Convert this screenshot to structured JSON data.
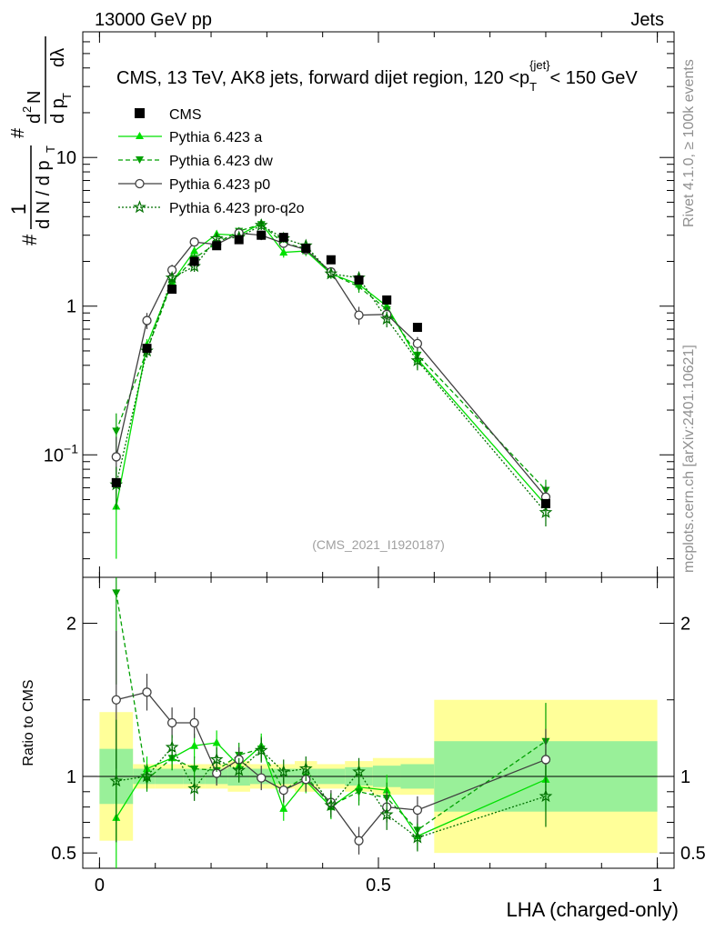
{
  "header": {
    "left": "13000 GeV pp",
    "right": "Jets"
  },
  "side_labels": {
    "rivet": "Rivet 4.1.0, ≥ 100k events",
    "mcplots": "mcplots.cern.ch [arXiv:2401.10621]"
  },
  "chart_data": {
    "type": "line",
    "title": "CMS, 13 TeV, AK8 jets, forward dijet region, 120 <p_T^{jet}< 150 GeV",
    "title_parts": {
      "main": "CMS, 13 TeV, AK8 jets, forward dijet region, 120 <p",
      "sub": "T",
      "sup": "{jet}",
      "tail": "< 150 GeV"
    },
    "watermark": "(CMS_2021_I1920187)",
    "ylabel_upper": "1/N dN/dp_T d²N/dp_T dλ",
    "ylabel_parts": {
      "hash": "#",
      "one": "1",
      "dN": "d N / d p",
      "T": "T",
      "d2N": "d",
      "two": "2",
      "N": "N",
      "dpT": "d p",
      "dl": "dλ"
    },
    "ylabel_lower": "Ratio to CMS",
    "xlabel": "LHA (charged-only)",
    "x_range": [
      -0.03,
      1.03
    ],
    "y_range_upper_log": [
      0.015,
      70
    ],
    "y_range_lower": [
      0.4,
      2.3
    ],
    "x_ticks": [
      {
        "v": 0,
        "label": "0"
      },
      {
        "v": 0.5,
        "label": "0.5"
      },
      {
        "v": 1,
        "label": "1"
      }
    ],
    "y_ticks_upper": [
      {
        "v": 0.1,
        "base": "10",
        "exp": "−1"
      },
      {
        "v": 1,
        "base": "1",
        "exp": ""
      },
      {
        "v": 10,
        "base": "10",
        "exp": ""
      }
    ],
    "y_ticks_lower": [
      {
        "v": 0.5,
        "label": "0.5"
      },
      {
        "v": 1,
        "label": "1"
      },
      {
        "v": 2,
        "label": "2"
      }
    ],
    "bins": [
      {
        "lo": 0.0,
        "hi": 0.06
      },
      {
        "lo": 0.06,
        "hi": 0.1
      },
      {
        "lo": 0.1,
        "hi": 0.15
      },
      {
        "lo": 0.15,
        "hi": 0.19
      },
      {
        "lo": 0.19,
        "hi": 0.23
      },
      {
        "lo": 0.23,
        "hi": 0.27
      },
      {
        "lo": 0.27,
        "hi": 0.31
      },
      {
        "lo": 0.31,
        "hi": 0.35
      },
      {
        "lo": 0.35,
        "hi": 0.39
      },
      {
        "lo": 0.39,
        "hi": 0.44
      },
      {
        "lo": 0.44,
        "hi": 0.49
      },
      {
        "lo": 0.49,
        "hi": 0.54
      },
      {
        "lo": 0.54,
        "hi": 0.6
      },
      {
        "lo": 0.6,
        "hi": 1.0
      }
    ],
    "x": [
      0.03,
      0.085,
      0.13,
      0.17,
      0.21,
      0.25,
      0.29,
      0.33,
      0.37,
      0.415,
      0.465,
      0.515,
      0.57,
      0.8
    ],
    "cms": {
      "name": "CMS",
      "values": [
        0.065,
        0.52,
        1.3,
        2.0,
        2.55,
        2.8,
        3.0,
        2.9,
        2.45,
        2.05,
        1.5,
        1.1,
        0.72,
        0.047
      ],
      "band_inner": [
        0.18,
        0.05,
        0.05,
        0.05,
        0.05,
        0.06,
        0.05,
        0.05,
        0.05,
        0.05,
        0.06,
        0.07,
        0.08,
        0.23
      ],
      "band_outer": [
        0.42,
        0.08,
        0.08,
        0.08,
        0.08,
        0.1,
        0.08,
        0.08,
        0.1,
        0.08,
        0.1,
        0.12,
        0.12,
        0.5
      ]
    },
    "series": [
      {
        "name": "Pythia 6.423 a",
        "color": "#00e000",
        "dash": "",
        "marker": "tri-up",
        "values": [
          0.045,
          0.55,
          1.45,
          2.35,
          3.05,
          3.0,
          3.6,
          2.3,
          2.35,
          1.65,
          1.4,
          1.0,
          0.44,
          0.046
        ],
        "errors": [
          0.025,
          0.05,
          0.1,
          0.15,
          0.18,
          0.2,
          0.25,
          0.18,
          0.18,
          0.12,
          0.12,
          0.1,
          0.06,
          0.008
        ]
      },
      {
        "name": "Pythia 6.423 dw",
        "color": "#00a000",
        "dash": "5,3",
        "marker": "tri-down",
        "values": [
          0.145,
          0.5,
          1.45,
          2.1,
          2.65,
          3.2,
          3.55,
          2.65,
          2.45,
          1.65,
          1.35,
          0.95,
          0.47,
          0.058
        ],
        "errors": [
          0.045,
          0.05,
          0.1,
          0.15,
          0.18,
          0.2,
          0.25,
          0.18,
          0.18,
          0.12,
          0.12,
          0.1,
          0.06,
          0.01
        ]
      },
      {
        "name": "Pythia 6.423 p0",
        "color": "#404040",
        "dash": "",
        "marker": "circle",
        "values": [
          0.097,
          0.8,
          1.75,
          2.7,
          2.6,
          3.1,
          3.0,
          2.65,
          2.4,
          1.7,
          0.87,
          0.88,
          0.56,
          0.052
        ],
        "errors": [
          0.035,
          0.1,
          0.15,
          0.18,
          0.18,
          0.2,
          0.22,
          0.18,
          0.18,
          0.12,
          0.12,
          0.1,
          0.06,
          0.01
        ]
      },
      {
        "name": "Pythia 6.423 pro-q2o",
        "color": "#007000",
        "dash": "2,2",
        "marker": "star",
        "values": [
          0.063,
          0.5,
          1.55,
          1.85,
          2.85,
          2.9,
          3.5,
          2.85,
          2.55,
          1.65,
          1.55,
          0.82,
          0.43,
          0.041
        ],
        "errors": [
          0.02,
          0.05,
          0.1,
          0.15,
          0.18,
          0.2,
          0.25,
          0.18,
          0.18,
          0.12,
          0.12,
          0.1,
          0.06,
          0.008
        ]
      }
    ],
    "ratios": [
      {
        "name": "Pythia 6.423 a",
        "values": [
          0.73,
          1.05,
          1.12,
          1.2,
          1.22,
          1.07,
          1.2,
          0.79,
          0.97,
          0.8,
          0.93,
          0.91,
          0.61,
          0.98
        ],
        "errors": [
          0.45,
          0.08,
          0.08,
          0.08,
          0.08,
          0.08,
          0.08,
          0.08,
          0.08,
          0.08,
          0.09,
          0.1,
          0.09,
          0.2
        ]
      },
      {
        "name": "Pythia 6.423 dw",
        "values": [
          2.2,
          0.98,
          1.12,
          1.05,
          1.04,
          1.14,
          1.18,
          0.91,
          1.0,
          0.81,
          0.9,
          0.86,
          0.65,
          1.23
        ],
        "errors": [
          0.6,
          0.08,
          0.08,
          0.08,
          0.08,
          0.08,
          0.08,
          0.08,
          0.08,
          0.08,
          0.09,
          0.1,
          0.09,
          0.25
        ]
      },
      {
        "name": "Pythia 6.423 p0",
        "values": [
          1.5,
          1.55,
          1.35,
          1.35,
          1.02,
          1.11,
          0.99,
          0.91,
          0.98,
          0.83,
          0.58,
          0.8,
          0.78,
          1.11
        ],
        "errors": [
          0.45,
          0.12,
          0.1,
          0.1,
          0.08,
          0.08,
          0.08,
          0.08,
          0.08,
          0.08,
          0.09,
          0.1,
          0.09,
          0.2
        ]
      },
      {
        "name": "Pythia 6.423 pro-q2o",
        "values": [
          0.97,
          1.0,
          1.19,
          0.92,
          1.11,
          1.04,
          1.17,
          1.03,
          1.05,
          0.81,
          1.03,
          0.75,
          0.6,
          0.87
        ],
        "errors": [
          0.4,
          0.08,
          0.08,
          0.08,
          0.08,
          0.08,
          0.08,
          0.08,
          0.08,
          0.08,
          0.09,
          0.1,
          0.09,
          0.2
        ]
      }
    ],
    "legend_position": "top-left"
  },
  "colors": {
    "band_inner": "#99f099",
    "band_outer": "#ffff99",
    "cms": "#000000"
  }
}
